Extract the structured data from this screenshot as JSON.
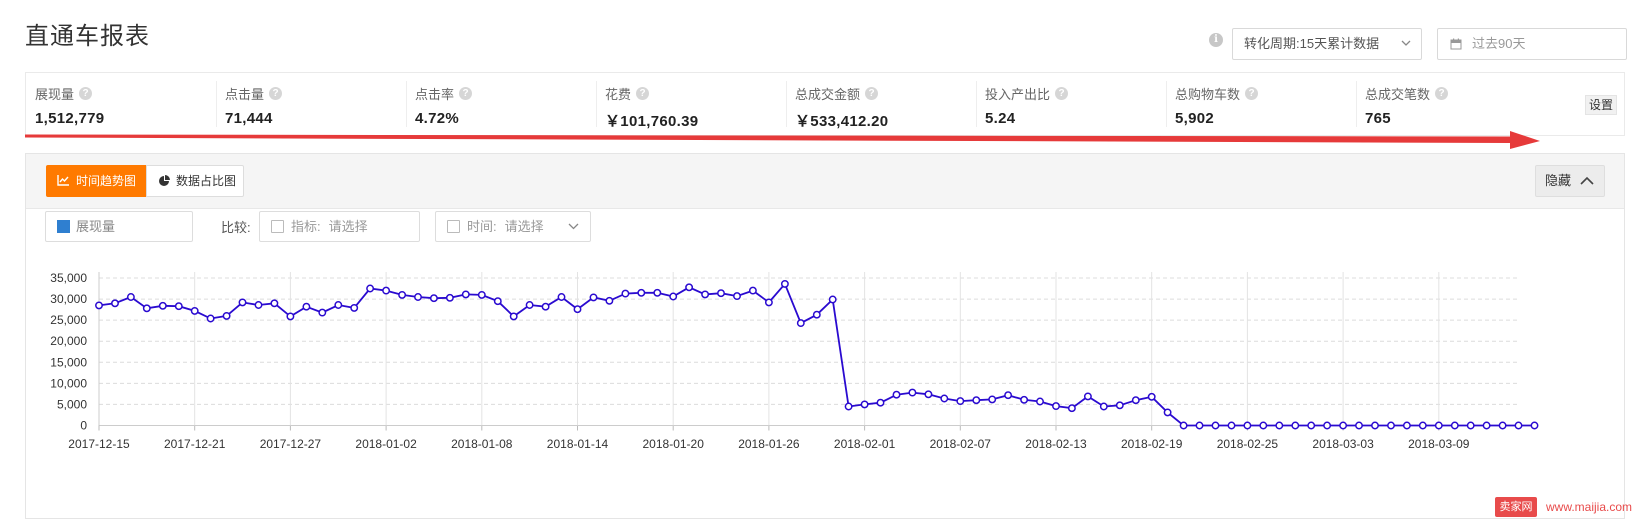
{
  "page": {
    "title": "直通车报表"
  },
  "toolbar": {
    "info_icon": "i",
    "period_label": "转化周期:15天累计数据",
    "date_range_placeholder": "过去90天"
  },
  "metrics": [
    {
      "label": "展现量",
      "value": "1,512,779"
    },
    {
      "label": "点击量",
      "value": "71,444"
    },
    {
      "label": "点击率",
      "value": "4.72%"
    },
    {
      "label": "花费",
      "value": "￥101,760.39"
    },
    {
      "label": "总成交金额",
      "value": "￥533,412.20"
    },
    {
      "label": "投入产出比",
      "value": "5.24"
    },
    {
      "label": "总购物车数",
      "value": "5,902"
    },
    {
      "label": "总成交笔数",
      "value": "765"
    }
  ],
  "help_icon": "?",
  "settings_label": "设置",
  "chart_tabs": {
    "trend": "时间趋势图",
    "share": "数据占比图"
  },
  "hide_label": "隐藏",
  "filters": {
    "selected_metric": "展现量",
    "compare_label": "比较:",
    "indicator_key": "指标:",
    "indicator_placeholder": "请选择",
    "time_key": "时间:",
    "time_placeholder": "请选择"
  },
  "watermark": {
    "badge": "卖家网",
    "url": "www.maijia.com"
  },
  "colors": {
    "accent": "#ff7a00",
    "series": "#2a0ad0",
    "arrow": "#e63a3a",
    "metric_swatch": "#2f7fd0"
  },
  "chart_data": {
    "type": "line",
    "series": [
      {
        "name": "展现量",
        "values": [
          28500,
          29000,
          30500,
          27800,
          28400,
          28300,
          27200,
          25400,
          26000,
          29200,
          28600,
          29000,
          25900,
          28200,
          26800,
          28600,
          27900,
          32500,
          32000,
          31000,
          30500,
          30200,
          30300,
          31100,
          31000,
          29500,
          25900,
          28600,
          28200,
          30500,
          27600,
          30400,
          29600,
          31300,
          31500,
          31500,
          30600,
          32800,
          31100,
          31400,
          30700,
          32000,
          29200,
          33600,
          24300,
          26300,
          29900,
          4500,
          5000,
          5400,
          7300,
          7800,
          7400,
          6400,
          5800,
          6000,
          6200,
          7200,
          6100,
          5700,
          4600,
          4100,
          6900,
          4500,
          4800,
          6000,
          6800,
          3100,
          0,
          0,
          0,
          0,
          0,
          0,
          0,
          0,
          0,
          0,
          0,
          0,
          0,
          0,
          0,
          0,
          0,
          0,
          0,
          0,
          0,
          0,
          0
        ]
      }
    ],
    "x_tick_labels": [
      "2017-12-15",
      "2017-12-21",
      "2017-12-27",
      "2018-01-02",
      "2018-01-08",
      "2018-01-14",
      "2018-01-20",
      "2018-01-26",
      "2018-02-01",
      "2018-02-07",
      "2018-02-13",
      "2018-02-19",
      "2018-02-25",
      "2018-03-03",
      "2018-03-09"
    ],
    "x_tick_every": 6,
    "y_ticks": [
      "0",
      "5,000",
      "10,000",
      "15,000",
      "20,000",
      "25,000",
      "30,000",
      "35,000"
    ],
    "ylim": [
      0,
      35000
    ],
    "title": "",
    "xlabel": "",
    "ylabel": "",
    "grid": true
  }
}
